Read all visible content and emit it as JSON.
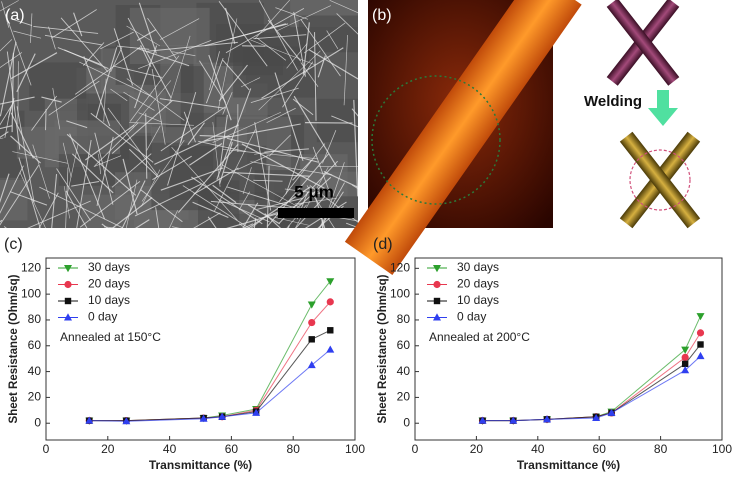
{
  "panels": {
    "a": {
      "label": "(a)",
      "scale": "5 μm"
    },
    "b": {
      "label": "(b)"
    },
    "welding": {
      "label": "Welding"
    }
  },
  "chart_data": [
    {
      "type": "line",
      "panel_label": "(c)",
      "xlabel": "Transmittance (%)",
      "ylabel": "Sheet Resistance (Ohm/sq)",
      "annotation": "Annealed at 150°C",
      "x": [
        14,
        26,
        51,
        57,
        68,
        86,
        92
      ],
      "xlim": [
        0,
        100
      ],
      "xticks": [
        0,
        20,
        40,
        60,
        80,
        100
      ],
      "ylim": [
        -13,
        128
      ],
      "yticks": [
        0,
        20,
        40,
        60,
        80,
        100,
        120
      ],
      "legend": "upper left",
      "series": [
        {
          "name": "30 days",
          "color": "#2ca02c",
          "marker": "triangle-down",
          "values": [
            2,
            2,
            4,
            6,
            11,
            92,
            110
          ]
        },
        {
          "name": "20 days",
          "color": "#e8374f",
          "marker": "circle",
          "values": [
            2,
            2,
            4,
            5,
            10,
            78,
            94
          ]
        },
        {
          "name": "10 days",
          "color": "#111111",
          "marker": "square",
          "values": [
            2,
            2,
            4,
            5,
            9,
            65,
            72
          ]
        },
        {
          "name": "0 day",
          "color": "#2f3ff0",
          "marker": "triangle-up",
          "values": [
            2,
            1.5,
            3.5,
            5,
            8,
            45,
            57
          ]
        }
      ]
    },
    {
      "type": "line",
      "panel_label": "(d)",
      "xlabel": "Transmittance (%)",
      "ylabel": "Sheet Resistance (Ohm/sq)",
      "annotation": "Annealed at 200°C",
      "x": [
        22,
        32,
        43,
        59,
        64,
        88,
        93
      ],
      "xlim": [
        0,
        100
      ],
      "xticks": [
        0,
        20,
        40,
        60,
        80,
        100
      ],
      "ylim": [
        -13,
        128
      ],
      "yticks": [
        0,
        20,
        40,
        60,
        80,
        100,
        120
      ],
      "legend": "upper left",
      "series": [
        {
          "name": "30 days",
          "color": "#2ca02c",
          "marker": "triangle-down",
          "values": [
            2,
            2,
            3,
            5,
            9,
            57,
            83
          ]
        },
        {
          "name": "20 days",
          "color": "#e8374f",
          "marker": "circle",
          "values": [
            2,
            2,
            3,
            5,
            8,
            51,
            70
          ]
        },
        {
          "name": "10 days",
          "color": "#111111",
          "marker": "square",
          "values": [
            2,
            2,
            3,
            5,
            8,
            46,
            61
          ]
        },
        {
          "name": "0 day",
          "color": "#2f3ff0",
          "marker": "triangle-up",
          "values": [
            2,
            2,
            3,
            4,
            8,
            41,
            52
          ]
        }
      ]
    }
  ]
}
